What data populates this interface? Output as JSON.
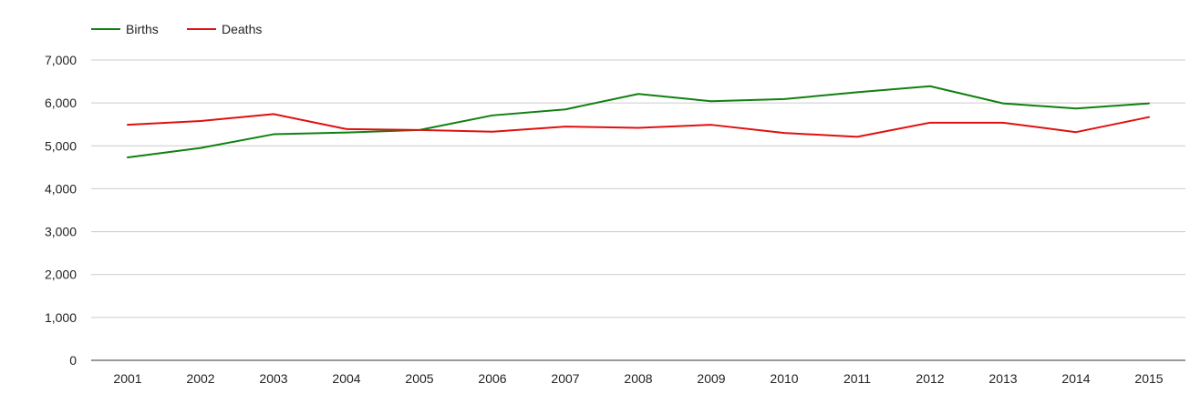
{
  "chart_data": {
    "type": "line",
    "title": "",
    "xlabel": "",
    "ylabel": "",
    "x": [
      "2001",
      "2002",
      "2003",
      "2004",
      "2005",
      "2006",
      "2007",
      "2008",
      "2009",
      "2010",
      "2011",
      "2012",
      "2013",
      "2014",
      "2015"
    ],
    "ylim": [
      0,
      7000
    ],
    "yticks": [
      0,
      1000,
      2000,
      3000,
      4000,
      5000,
      6000,
      7000
    ],
    "ytick_labels": [
      "0",
      "1,000",
      "2,000",
      "3,000",
      "4,000",
      "5,000",
      "6,000",
      "7,000"
    ],
    "grid": true,
    "legend_position": "top-left",
    "series": [
      {
        "name": "Births",
        "color": "#108010",
        "values": [
          4730,
          4950,
          5270,
          5310,
          5370,
          5710,
          5850,
          6210,
          6040,
          6090,
          6250,
          6390,
          5990,
          5870,
          5990
        ]
      },
      {
        "name": "Deaths",
        "color": "#e01010",
        "values": [
          5490,
          5580,
          5740,
          5390,
          5370,
          5330,
          5450,
          5420,
          5490,
          5300,
          5210,
          5540,
          5540,
          5320,
          5670
        ]
      }
    ]
  }
}
